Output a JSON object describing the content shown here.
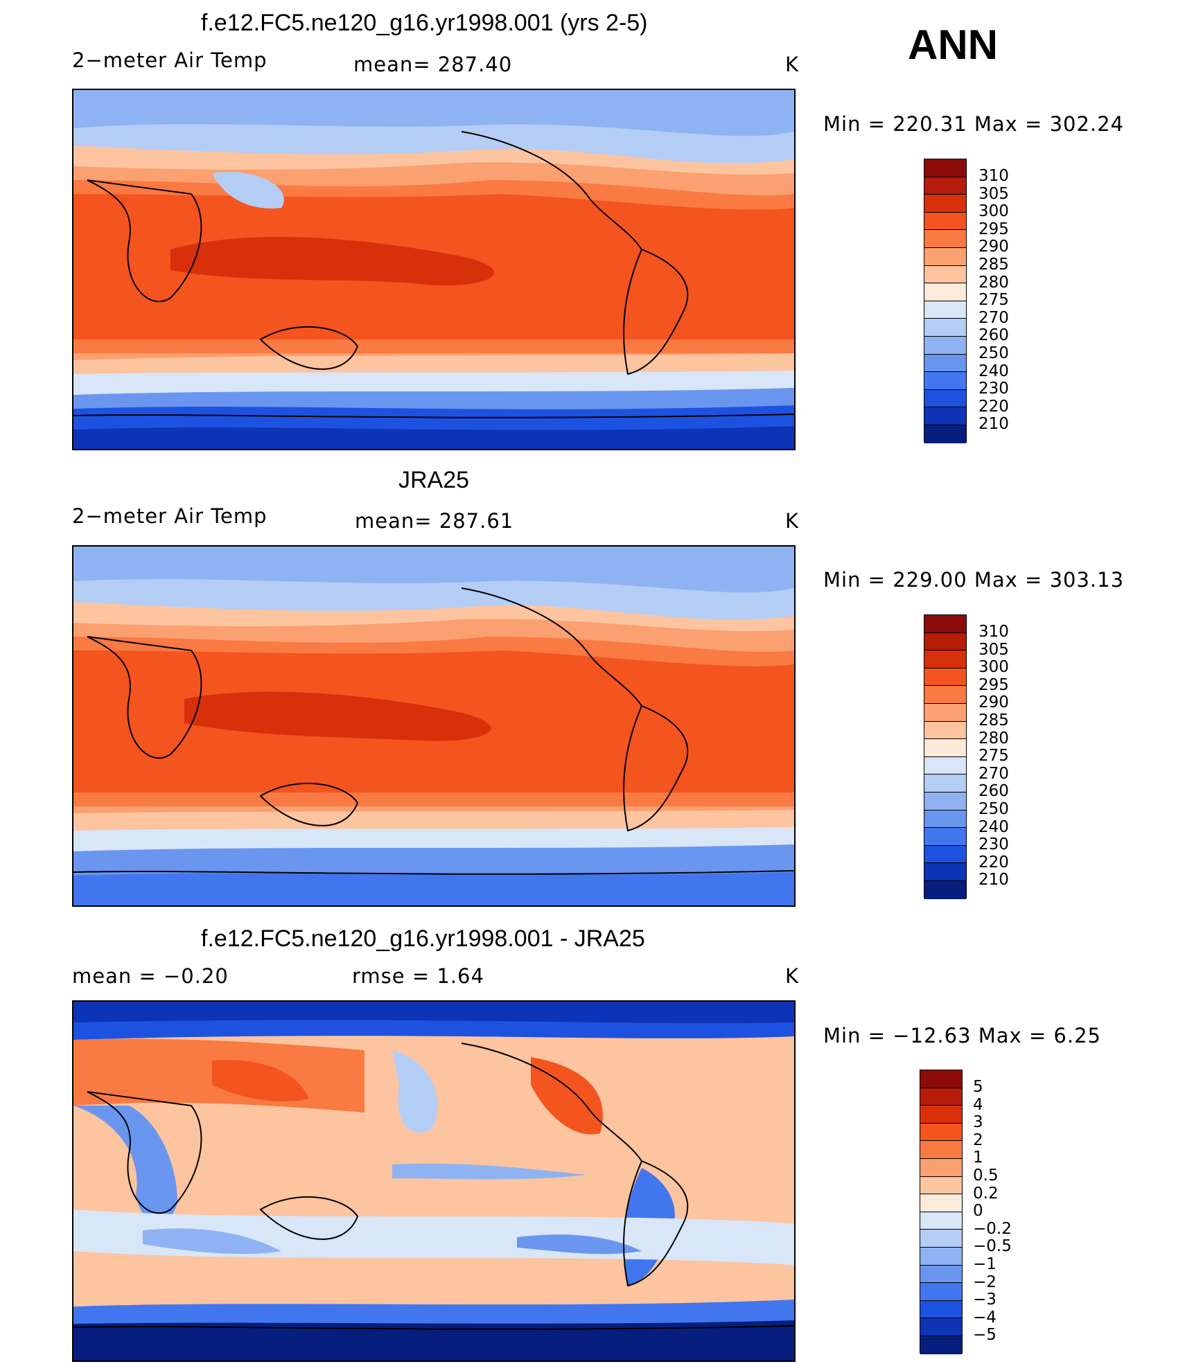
{
  "season": "ANN",
  "panels": [
    {
      "title": "f.e12.FC5.ne120_g16.yr1998.001 (yrs 2-5)",
      "left_label": "2−meter Air Temp",
      "center_label": "mean=  287.40",
      "units": "K",
      "minmax": "Min  =  220.31  Max  =  302.24",
      "levels": [
        "310",
        "305",
        "300",
        "295",
        "290",
        "285",
        "280",
        "275",
        "270",
        "260",
        "250",
        "240",
        "230",
        "220",
        "210"
      ],
      "colors": [
        "#8b0c0b",
        "#b51c0a",
        "#d8300b",
        "#f4541e",
        "#f97a42",
        "#fba070",
        "#fdc4a0",
        "#feeadb",
        "#d8e6f8",
        "#b4cdf5",
        "#8fb3f2",
        "#6a96ef",
        "#4276ee",
        "#1d52e0",
        "#0d34b7",
        "#061e7e"
      ]
    },
    {
      "title": "JRA25",
      "left_label": "2−meter Air Temp",
      "center_label": "mean=  287.61",
      "units": "K",
      "minmax": "Min  =  229.00  Max  =  303.13",
      "levels": [
        "310",
        "305",
        "300",
        "295",
        "290",
        "285",
        "280",
        "275",
        "270",
        "260",
        "250",
        "240",
        "230",
        "220",
        "210"
      ],
      "colors": [
        "#8b0c0b",
        "#b51c0a",
        "#d8300b",
        "#f4541e",
        "#f97a42",
        "#fba070",
        "#fdc4a0",
        "#feeadb",
        "#d8e6f8",
        "#b4cdf5",
        "#8fb3f2",
        "#6a96ef",
        "#4276ee",
        "#1d52e0",
        "#0d34b7",
        "#061e7e"
      ]
    },
    {
      "title": "f.e12.FC5.ne120_g16.yr1998.001 - JRA25",
      "left_label": "mean  =    −0.20",
      "center_label": "rmse  =     1.64",
      "units": "K",
      "minmax": "Min  =  −12.63  Max  =      6.25",
      "levels": [
        "5",
        "4",
        "3",
        "2",
        "1",
        "0.5",
        "0.2",
        "0",
        "−0.2",
        "−0.5",
        "−1",
        "−2",
        "−3",
        "−4",
        "−5"
      ],
      "colors": [
        "#8b0c0b",
        "#b51c0a",
        "#d8300b",
        "#f4541e",
        "#f97a42",
        "#fba070",
        "#fdc4a0",
        "#feeadb",
        "#d8e6f8",
        "#b4cdf5",
        "#8fb3f2",
        "#6a96ef",
        "#4276ee",
        "#1d52e0",
        "#0d34b7",
        "#061e7e"
      ]
    }
  ]
}
